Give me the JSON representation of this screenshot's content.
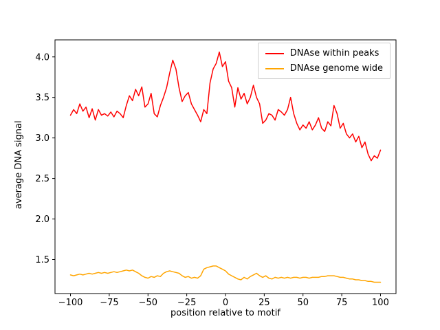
{
  "figure": {
    "background": "#ffffff",
    "axes_background": "#ffffff",
    "axes_edge_color": "#000000"
  },
  "chart_data": {
    "type": "line",
    "title": "",
    "xlabel": "position relative to motif",
    "ylabel": "average DNA signal",
    "grid": false,
    "legend_position": "upper right",
    "xlim": [
      -110,
      110
    ],
    "ylim": [
      1.08,
      4.21
    ],
    "xticks": {
      "values": [
        -100,
        -75,
        -50,
        -25,
        0,
        25,
        50,
        75,
        100
      ],
      "labels": [
        "−100",
        "−75",
        "−50",
        "−25",
        "0",
        "25",
        "50",
        "75",
        "100"
      ]
    },
    "yticks": {
      "values": [
        1.5,
        2.0,
        2.5,
        3.0,
        3.5,
        4.0
      ],
      "labels": [
        "1.5",
        "2.0",
        "2.5",
        "3.0",
        "3.5",
        "4.0"
      ]
    },
    "x": [
      -100,
      -98,
      -96,
      -94,
      -92,
      -90,
      -88,
      -86,
      -84,
      -82,
      -80,
      -78,
      -76,
      -74,
      -72,
      -70,
      -68,
      -66,
      -64,
      -62,
      -60,
      -58,
      -56,
      -54,
      -52,
      -50,
      -48,
      -46,
      -44,
      -42,
      -40,
      -38,
      -36,
      -34,
      -32,
      -30,
      -28,
      -26,
      -24,
      -22,
      -20,
      -18,
      -16,
      -14,
      -12,
      -10,
      -8,
      -6,
      -4,
      -2,
      0,
      2,
      4,
      6,
      8,
      10,
      12,
      14,
      16,
      18,
      20,
      22,
      24,
      26,
      28,
      30,
      32,
      34,
      36,
      38,
      40,
      42,
      44,
      46,
      48,
      50,
      52,
      54,
      56,
      58,
      60,
      62,
      64,
      66,
      68,
      70,
      72,
      74,
      76,
      78,
      80,
      82,
      84,
      86,
      88,
      90,
      92,
      94,
      96,
      98,
      100
    ],
    "series": [
      {
        "name": "DNAse within peaks",
        "color": "#ff0000",
        "linewidth": 1.5,
        "values": [
          3.28,
          3.35,
          3.3,
          3.42,
          3.33,
          3.38,
          3.25,
          3.36,
          3.22,
          3.35,
          3.28,
          3.3,
          3.27,
          3.32,
          3.26,
          3.33,
          3.3,
          3.25,
          3.4,
          3.52,
          3.46,
          3.6,
          3.52,
          3.63,
          3.38,
          3.42,
          3.55,
          3.3,
          3.26,
          3.4,
          3.5,
          3.62,
          3.8,
          3.96,
          3.85,
          3.62,
          3.45,
          3.52,
          3.56,
          3.42,
          3.35,
          3.28,
          3.2,
          3.35,
          3.3,
          3.68,
          3.85,
          3.92,
          4.06,
          3.88,
          3.94,
          3.7,
          3.62,
          3.38,
          3.62,
          3.48,
          3.55,
          3.42,
          3.5,
          3.65,
          3.5,
          3.42,
          3.18,
          3.22,
          3.3,
          3.28,
          3.22,
          3.35,
          3.32,
          3.28,
          3.35,
          3.5,
          3.3,
          3.18,
          3.1,
          3.16,
          3.12,
          3.2,
          3.1,
          3.16,
          3.25,
          3.12,
          3.08,
          3.2,
          3.15,
          3.4,
          3.3,
          3.12,
          3.18,
          3.05,
          3.0,
          3.05,
          2.95,
          3.02,
          2.88,
          2.95,
          2.8,
          2.72,
          2.78,
          2.75,
          2.85
        ]
      },
      {
        "name": "DNAse genome wide",
        "color": "#ffa500",
        "linewidth": 1.5,
        "values": [
          1.31,
          1.3,
          1.31,
          1.32,
          1.31,
          1.32,
          1.33,
          1.32,
          1.33,
          1.34,
          1.33,
          1.34,
          1.33,
          1.34,
          1.35,
          1.34,
          1.35,
          1.36,
          1.37,
          1.36,
          1.37,
          1.35,
          1.33,
          1.3,
          1.28,
          1.27,
          1.29,
          1.28,
          1.3,
          1.29,
          1.33,
          1.35,
          1.36,
          1.35,
          1.34,
          1.33,
          1.3,
          1.28,
          1.29,
          1.27,
          1.28,
          1.27,
          1.3,
          1.38,
          1.4,
          1.41,
          1.42,
          1.42,
          1.4,
          1.38,
          1.36,
          1.32,
          1.3,
          1.28,
          1.26,
          1.25,
          1.28,
          1.26,
          1.29,
          1.31,
          1.33,
          1.3,
          1.28,
          1.3,
          1.27,
          1.26,
          1.28,
          1.27,
          1.28,
          1.27,
          1.28,
          1.27,
          1.28,
          1.28,
          1.27,
          1.28,
          1.28,
          1.27,
          1.28,
          1.28,
          1.28,
          1.29,
          1.29,
          1.3,
          1.3,
          1.3,
          1.29,
          1.28,
          1.28,
          1.27,
          1.26,
          1.26,
          1.25,
          1.25,
          1.24,
          1.24,
          1.23,
          1.23,
          1.22,
          1.22,
          1.22
        ]
      }
    ]
  }
}
